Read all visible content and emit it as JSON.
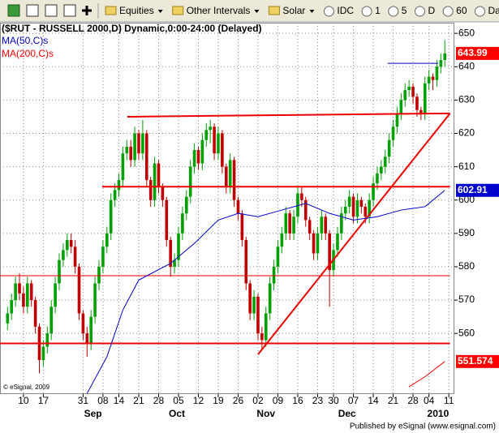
{
  "toolbar": {
    "items": [
      "Equities",
      "Other Intervals",
      "Solar",
      "IDC",
      "1",
      "5",
      "D",
      "60",
      "Daily"
    ]
  },
  "footer": "Published by eSignal (www.esignal.com)",
  "chart_data": {
    "type": "candlestick",
    "title": "($RUT - RUSSELL 2000,D) Dynamic,0:00-24:00 (Delayed)",
    "copyright": "© eSignal, 2009",
    "up_color": "#00a000",
    "down_color": "#c00000",
    "grid": true,
    "xlim": [
      -1.9,
      112.4
    ],
    "ylim": [
      541.8,
      653.2
    ],
    "yticks": [
      560,
      570,
      580,
      590,
      600,
      610,
      620,
      630,
      640,
      650
    ],
    "xticks": [
      {
        "value": 4,
        "label": "10"
      },
      {
        "value": 9,
        "label": "17"
      },
      {
        "value": 19,
        "label": "31"
      },
      {
        "value": 24,
        "label": "08"
      },
      {
        "value": 28,
        "label": "14"
      },
      {
        "value": 33,
        "label": "21"
      },
      {
        "value": 38,
        "label": "28"
      },
      {
        "value": 43,
        "label": "05"
      },
      {
        "value": 48,
        "label": "12"
      },
      {
        "value": 53,
        "label": "19"
      },
      {
        "value": 58,
        "label": "26"
      },
      {
        "value": 63,
        "label": "02"
      },
      {
        "value": 68,
        "label": "09"
      },
      {
        "value": 73,
        "label": "16"
      },
      {
        "value": 78,
        "label": "23"
      },
      {
        "value": 82,
        "label": "30"
      },
      {
        "value": 87,
        "label": "07"
      },
      {
        "value": 92,
        "label": "14"
      },
      {
        "value": 97,
        "label": "21"
      },
      {
        "value": 102,
        "label": "28"
      },
      {
        "value": 106,
        "label": "04"
      },
      {
        "value": 111,
        "label": "11"
      }
    ],
    "month_labels": [
      {
        "value": 21.5,
        "label": "Sep"
      },
      {
        "value": 42.6,
        "label": "Oct"
      },
      {
        "value": 65,
        "label": "Nov"
      },
      {
        "value": 85.4,
        "label": "Dec"
      },
      {
        "value": 108.3,
        "label": "2010"
      }
    ],
    "values": [
      [
        563,
        568,
        561,
        566
      ],
      [
        566,
        572,
        564,
        570
      ],
      [
        570,
        577,
        568,
        575
      ],
      [
        575,
        578,
        570,
        572
      ],
      [
        572,
        574,
        566,
        568
      ],
      [
        568,
        577,
        566,
        575
      ],
      [
        575,
        576,
        568,
        570
      ],
      [
        570,
        571,
        560,
        562
      ],
      [
        562,
        563,
        548,
        552
      ],
      [
        552,
        558,
        550,
        556
      ],
      [
        556,
        562,
        554,
        560
      ],
      [
        560,
        570,
        558,
        568
      ],
      [
        568,
        577,
        566,
        575
      ],
      [
        575,
        584,
        573,
        582
      ],
      [
        582,
        587,
        580,
        585
      ],
      [
        585,
        590,
        583,
        588
      ],
      [
        588,
        590,
        584,
        586
      ],
      [
        586,
        588,
        578,
        580
      ],
      [
        580,
        581,
        564,
        566
      ],
      [
        566,
        567,
        558,
        560
      ],
      [
        560,
        562,
        553,
        557
      ],
      [
        557,
        567,
        555,
        565
      ],
      [
        565,
        577,
        563,
        575
      ],
      [
        575,
        582,
        573,
        580
      ],
      [
        580,
        588,
        578,
        586
      ],
      [
        586,
        592,
        584,
        590
      ],
      [
        590,
        602,
        588,
        600
      ],
      [
        600,
        605,
        598,
        603
      ],
      [
        603,
        608,
        601,
        606
      ],
      [
        606,
        616,
        604,
        614
      ],
      [
        614,
        618,
        612,
        616
      ],
      [
        616,
        618,
        610,
        612
      ],
      [
        612,
        622,
        610,
        620
      ],
      [
        620,
        621,
        612,
        614
      ],
      [
        614,
        624,
        612,
        620
      ],
      [
        620,
        621,
        604,
        606
      ],
      [
        606,
        607,
        598,
        600
      ],
      [
        600,
        613,
        598,
        611
      ],
      [
        611,
        612,
        602,
        604
      ],
      [
        604,
        605,
        598,
        600
      ],
      [
        600,
        601,
        586,
        588
      ],
      [
        588,
        589,
        577,
        580
      ],
      [
        580,
        584,
        578,
        582
      ],
      [
        582,
        592,
        580,
        590
      ],
      [
        590,
        598,
        588,
        596
      ],
      [
        596,
        603,
        594,
        601
      ],
      [
        601,
        612,
        599,
        610
      ],
      [
        610,
        617,
        608,
        615
      ],
      [
        615,
        616,
        609,
        611
      ],
      [
        611,
        620,
        609,
        618
      ],
      [
        618,
        623,
        616,
        621
      ],
      [
        621,
        624,
        617,
        622
      ],
      [
        622,
        623,
        612,
        614
      ],
      [
        614,
        622,
        612,
        620
      ],
      [
        620,
        621,
        608,
        610
      ],
      [
        610,
        611,
        602,
        604
      ],
      [
        604,
        614,
        602,
        612
      ],
      [
        612,
        613,
        598,
        600
      ],
      [
        600,
        601,
        594,
        596
      ],
      [
        596,
        597,
        586,
        588
      ],
      [
        588,
        589,
        573,
        575
      ],
      [
        575,
        576,
        564,
        566
      ],
      [
        566,
        573,
        564,
        571
      ],
      [
        571,
        572,
        558,
        560
      ],
      [
        560,
        562,
        555,
        558
      ],
      [
        558,
        568,
        556,
        566
      ],
      [
        566,
        577,
        564,
        575
      ],
      [
        575,
        582,
        573,
        580
      ],
      [
        580,
        588,
        578,
        586
      ],
      [
        586,
        592,
        584,
        590
      ],
      [
        590,
        598,
        588,
        596
      ],
      [
        596,
        597,
        588,
        590
      ],
      [
        590,
        597,
        588,
        595
      ],
      [
        595,
        604,
        593,
        602
      ],
      [
        602,
        604,
        598,
        600
      ],
      [
        600,
        601,
        592,
        594
      ],
      [
        594,
        595,
        588,
        590
      ],
      [
        590,
        591,
        582,
        584
      ],
      [
        584,
        592,
        582,
        590
      ],
      [
        590,
        597,
        588,
        595
      ],
      [
        595,
        596,
        588,
        590
      ],
      [
        590,
        591,
        568,
        579
      ],
      [
        579,
        587,
        577,
        585
      ],
      [
        585,
        592,
        583,
        590
      ],
      [
        590,
        598,
        588,
        596
      ],
      [
        596,
        600,
        594,
        598
      ],
      [
        598,
        603,
        596,
        601
      ],
      [
        601,
        602,
        593,
        595
      ],
      [
        595,
        602,
        593,
        600
      ],
      [
        600,
        601,
        596,
        598
      ],
      [
        598,
        599,
        593,
        595
      ],
      [
        595,
        602,
        593,
        600
      ],
      [
        600,
        607,
        598,
        605
      ],
      [
        605,
        610,
        603,
        608
      ],
      [
        608,
        612,
        606,
        610
      ],
      [
        610,
        615,
        608,
        613
      ],
      [
        613,
        620,
        611,
        618
      ],
      [
        618,
        624,
        616,
        622
      ],
      [
        622,
        628,
        620,
        626
      ],
      [
        626,
        632,
        624,
        630
      ],
      [
        630,
        635,
        628,
        633
      ],
      [
        633,
        636,
        631,
        634
      ],
      [
        634,
        635,
        629,
        631
      ],
      [
        631,
        632,
        625,
        627
      ],
      [
        627,
        628,
        624,
        626
      ],
      [
        626,
        637,
        624,
        635
      ],
      [
        635,
        639,
        633,
        637
      ],
      [
        637,
        638,
        633,
        636
      ],
      [
        636,
        642,
        634,
        640
      ],
      [
        640,
        644,
        638,
        642
      ],
      [
        642,
        648,
        640,
        643.99
      ]
    ],
    "series": [
      {
        "name": "MA(50,C)s",
        "color": "#0000cc",
        "x": [
          20,
          25,
          29,
          33,
          41,
          47,
          53,
          58,
          63,
          69,
          75,
          81,
          87,
          93,
          99,
          105,
          110
        ],
        "values": [
          542,
          553,
          567,
          576,
          581,
          587,
          594,
          596,
          595,
          597,
          599,
          596,
          594,
          595,
          597,
          598,
          602.91
        ]
      },
      {
        "name": "MA(200,C)s",
        "color": "#ff0000",
        "x": [
          101,
          105,
          110
        ],
        "values": [
          544,
          547,
          551.574
        ]
      }
    ],
    "trendlines": [
      {
        "color": "#ee0000",
        "width": 2,
        "x": [
          30.1,
          111.3
        ],
        "values": [
          625,
          626
        ]
      },
      {
        "color": "#ee0000",
        "width": 2,
        "x": [
          23.8,
          111.3
        ],
        "values": [
          604,
          604
        ]
      },
      {
        "color": "#ee0000",
        "width": 1,
        "x": [
          -1.9,
          111.3
        ],
        "values": [
          577.3,
          577.3
        ]
      },
      {
        "color": "#ee0000",
        "width": 2,
        "x": [
          -1.9,
          111.3
        ],
        "values": [
          557,
          557
        ]
      },
      {
        "color": "#ee0000",
        "width": 2,
        "x": [
          63,
          111.3
        ],
        "values": [
          553.7,
          626
        ]
      },
      {
        "color": "#0000cc",
        "width": 1,
        "x": [
          95.6,
          108.3
        ],
        "values": [
          641,
          641
        ]
      }
    ],
    "price_tags": [
      {
        "value": 643.99,
        "color": "#ff0000"
      },
      {
        "value": 602.91,
        "color": "#0000cc"
      },
      {
        "value": 551.574,
        "color": "#ff0000"
      }
    ]
  }
}
